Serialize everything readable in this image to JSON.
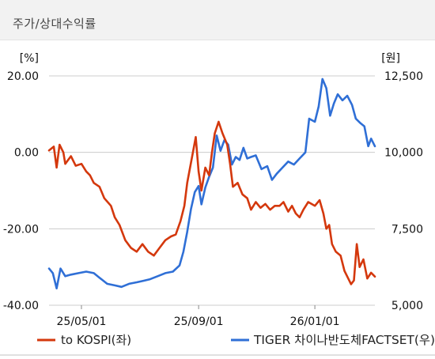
{
  "header": {
    "title": "주가/상대수익률"
  },
  "chart_data": {
    "type": "line",
    "left_axis": {
      "unit": "[%]",
      "ylim": [
        -40,
        20
      ],
      "ticks": [
        20,
        0,
        -20,
        -40
      ],
      "tick_labels": [
        "20.00",
        "0.00",
        "-20.00",
        "-40.00"
      ]
    },
    "right_axis": {
      "unit": "[원]",
      "ylim": [
        5000,
        12500
      ],
      "ticks": [
        12500,
        10000,
        7500,
        5000
      ],
      "tick_labels": [
        "12,500",
        "10,000",
        "7,500",
        "5,000"
      ]
    },
    "x_axis": {
      "tick_labels": [
        "25/05/01",
        "25/09/01",
        "26/01/01"
      ],
      "tick_dates": [
        "2025-05-01",
        "2025-09-01",
        "2026-01-01"
      ],
      "range": [
        "2025-03-28",
        "2026-03-05"
      ]
    },
    "grid": "horizontal",
    "legend_position": "bottom",
    "colors": {
      "relative": "#d4380d",
      "price": "#2f6fd6"
    },
    "series": [
      {
        "name": "to KOSPI(좌)",
        "axis": "left",
        "color": "#d4380d",
        "points": [
          [
            "2025-03-28",
            0.5
          ],
          [
            "2025-04-02",
            1.5
          ],
          [
            "2025-04-05",
            -4
          ],
          [
            "2025-04-08",
            2
          ],
          [
            "2025-04-12",
            0
          ],
          [
            "2025-04-14",
            -3
          ],
          [
            "2025-04-20",
            -1
          ],
          [
            "2025-04-25",
            -3.5
          ],
          [
            "2025-05-01",
            -3
          ],
          [
            "2025-05-06",
            -5
          ],
          [
            "2025-05-10",
            -6
          ],
          [
            "2025-05-14",
            -8
          ],
          [
            "2025-05-20",
            -9
          ],
          [
            "2025-05-25",
            -12
          ],
          [
            "2025-06-01",
            -14
          ],
          [
            "2025-06-05",
            -17
          ],
          [
            "2025-06-10",
            -19
          ],
          [
            "2025-06-16",
            -23
          ],
          [
            "2025-06-22",
            -25
          ],
          [
            "2025-06-28",
            -26
          ],
          [
            "2025-07-04",
            -24
          ],
          [
            "2025-07-10",
            -26
          ],
          [
            "2025-07-16",
            -27
          ],
          [
            "2025-07-22",
            -25
          ],
          [
            "2025-07-28",
            -23
          ],
          [
            "2025-08-03",
            -22
          ],
          [
            "2025-08-08",
            -21.5
          ],
          [
            "2025-08-13",
            -18
          ],
          [
            "2025-08-17",
            -14
          ],
          [
            "2025-08-20",
            -8
          ],
          [
            "2025-08-23",
            -4
          ],
          [
            "2025-08-26",
            0
          ],
          [
            "2025-08-29",
            4
          ],
          [
            "2025-09-01",
            -5
          ],
          [
            "2025-09-04",
            -10
          ],
          [
            "2025-09-08",
            -4
          ],
          [
            "2025-09-12",
            -6
          ],
          [
            "2025-09-15",
            0
          ],
          [
            "2025-09-18",
            5
          ],
          [
            "2025-09-22",
            8
          ],
          [
            "2025-09-26",
            5
          ],
          [
            "2025-10-01",
            2
          ],
          [
            "2025-10-04",
            -3
          ],
          [
            "2025-10-07",
            -9
          ],
          [
            "2025-10-12",
            -8
          ],
          [
            "2025-10-17",
            -11
          ],
          [
            "2025-10-22",
            -12
          ],
          [
            "2025-10-26",
            -15
          ],
          [
            "2025-10-31",
            -13
          ],
          [
            "2025-11-05",
            -14.5
          ],
          [
            "2025-11-10",
            -13.5
          ],
          [
            "2025-11-15",
            -15
          ],
          [
            "2025-11-20",
            -14
          ],
          [
            "2025-11-25",
            -14
          ],
          [
            "2025-11-29",
            -13
          ],
          [
            "2025-12-04",
            -15.5
          ],
          [
            "2025-12-08",
            -14
          ],
          [
            "2025-12-12",
            -16
          ],
          [
            "2025-12-16",
            -17
          ],
          [
            "2025-12-20",
            -15
          ],
          [
            "2025-12-25",
            -13
          ],
          [
            "2026-01-01",
            -14
          ],
          [
            "2026-01-06",
            -12.5
          ],
          [
            "2026-01-10",
            -16
          ],
          [
            "2026-01-13",
            -20
          ],
          [
            "2026-01-16",
            -19
          ],
          [
            "2026-01-19",
            -24
          ],
          [
            "2026-01-23",
            -26
          ],
          [
            "2026-01-28",
            -27
          ],
          [
            "2026-02-01",
            -31
          ],
          [
            "2026-02-05",
            -33
          ],
          [
            "2026-02-08",
            -34.5
          ],
          [
            "2026-02-11",
            -33.5
          ],
          [
            "2026-02-14",
            -24
          ],
          [
            "2026-02-17",
            -30
          ],
          [
            "2026-02-21",
            -28
          ],
          [
            "2026-02-25",
            -33
          ],
          [
            "2026-03-01",
            -31.5
          ],
          [
            "2026-03-05",
            -32.5
          ]
        ]
      },
      {
        "name": "TIGER 차이나반도체FACTSET(우)",
        "axis": "right",
        "color": "#2f6fd6",
        "points": [
          [
            "2025-03-28",
            6200
          ],
          [
            "2025-04-01",
            6050
          ],
          [
            "2025-04-05",
            5550
          ],
          [
            "2025-04-09",
            6200
          ],
          [
            "2025-04-14",
            5950
          ],
          [
            "2025-04-20",
            6000
          ],
          [
            "2025-04-28",
            6050
          ],
          [
            "2025-05-06",
            6100
          ],
          [
            "2025-05-14",
            6050
          ],
          [
            "2025-05-20",
            5900
          ],
          [
            "2025-05-28",
            5700
          ],
          [
            "2025-06-05",
            5650
          ],
          [
            "2025-06-12",
            5600
          ],
          [
            "2025-06-20",
            5700
          ],
          [
            "2025-06-28",
            5750
          ],
          [
            "2025-07-05",
            5800
          ],
          [
            "2025-07-12",
            5850
          ],
          [
            "2025-07-20",
            5950
          ],
          [
            "2025-07-28",
            6050
          ],
          [
            "2025-08-05",
            6100
          ],
          [
            "2025-08-12",
            6300
          ],
          [
            "2025-08-16",
            6750
          ],
          [
            "2025-08-20",
            7400
          ],
          [
            "2025-08-24",
            8150
          ],
          [
            "2025-08-28",
            8700
          ],
          [
            "2025-09-01",
            8900
          ],
          [
            "2025-09-04",
            8300
          ],
          [
            "2025-09-08",
            8850
          ],
          [
            "2025-09-12",
            9200
          ],
          [
            "2025-09-16",
            9500
          ],
          [
            "2025-09-20",
            10550
          ],
          [
            "2025-09-24",
            10050
          ],
          [
            "2025-09-28",
            10400
          ],
          [
            "2025-10-02",
            10250
          ],
          [
            "2025-10-06",
            9600
          ],
          [
            "2025-10-10",
            9850
          ],
          [
            "2025-10-14",
            9750
          ],
          [
            "2025-10-18",
            10150
          ],
          [
            "2025-10-22",
            9800
          ],
          [
            "2025-10-26",
            9850
          ],
          [
            "2025-10-31",
            9900
          ],
          [
            "2025-11-06",
            9450
          ],
          [
            "2025-11-12",
            9550
          ],
          [
            "2025-11-17",
            9100
          ],
          [
            "2025-11-22",
            9300
          ],
          [
            "2025-11-28",
            9500
          ],
          [
            "2025-12-04",
            9700
          ],
          [
            "2025-12-10",
            9600
          ],
          [
            "2025-12-16",
            9800
          ],
          [
            "2025-12-22",
            10000
          ],
          [
            "2025-12-26",
            11100
          ],
          [
            "2026-01-01",
            11000
          ],
          [
            "2026-01-05",
            11500
          ],
          [
            "2026-01-09",
            12400
          ],
          [
            "2026-01-13",
            12100
          ],
          [
            "2026-01-17",
            11200
          ],
          [
            "2026-01-21",
            11600
          ],
          [
            "2026-01-25",
            11900
          ],
          [
            "2026-01-30",
            11700
          ],
          [
            "2026-02-04",
            11850
          ],
          [
            "2026-02-09",
            11550
          ],
          [
            "2026-02-13",
            11100
          ],
          [
            "2026-02-18",
            10950
          ],
          [
            "2026-02-22",
            10850
          ],
          [
            "2026-02-26",
            10200
          ],
          [
            "2026-03-01",
            10450
          ],
          [
            "2026-03-05",
            10200
          ]
        ]
      }
    ]
  }
}
